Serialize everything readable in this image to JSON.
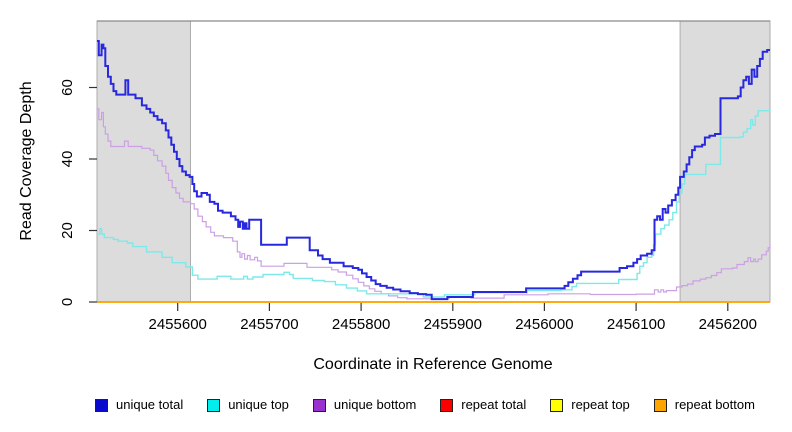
{
  "chart_data": {
    "type": "line",
    "interpolation": "step-after",
    "title": "",
    "xlabel": "Coordinate in Reference Genome",
    "ylabel": "Read Coverage Depth",
    "xlim": [
      2455512,
      2456246
    ],
    "ylim": [
      0,
      78.6
    ],
    "x_ticks": [
      2455600,
      2455700,
      2455800,
      2455900,
      2456000,
      2456100,
      2456200
    ],
    "y_ticks": [
      0,
      20,
      40,
      60
    ],
    "grid": false,
    "legend_position": "bottom",
    "plot_top_border_color": "#8A8A8A",
    "tick_color": "#333333",
    "shade_color": "#DCDCDC",
    "shade_border_color": "#ADADAD",
    "shaded_regions": [
      {
        "x0": 2455512,
        "x1": 2455614
      },
      {
        "x0": 2456148,
        "x1": 2456246
      }
    ],
    "draw_order": [
      3,
      4,
      5,
      2,
      1,
      0
    ],
    "series": [
      {
        "name": "unique total",
        "line_color": "#2828DF",
        "legend_color": "#0A0ACF",
        "line_width": 2,
        "points": [
          [
            2455512,
            73
          ],
          [
            2455514,
            69
          ],
          [
            2455517,
            72
          ],
          [
            2455519,
            71
          ],
          [
            2455521,
            66
          ],
          [
            2455524,
            63
          ],
          [
            2455527,
            61
          ],
          [
            2455530,
            59
          ],
          [
            2455533,
            58
          ],
          [
            2455543,
            62
          ],
          [
            2455546,
            58
          ],
          [
            2455554,
            57
          ],
          [
            2455561,
            55
          ],
          [
            2455566,
            54
          ],
          [
            2455570,
            53
          ],
          [
            2455574,
            52
          ],
          [
            2455578,
            51
          ],
          [
            2455583,
            50
          ],
          [
            2455587,
            48
          ],
          [
            2455590,
            46
          ],
          [
            2455593,
            44
          ],
          [
            2455596,
            42
          ],
          [
            2455599,
            40
          ],
          [
            2455602,
            38
          ],
          [
            2455605,
            36.5
          ],
          [
            2455609,
            35.5
          ],
          [
            2455613,
            35
          ],
          [
            2455616,
            33
          ],
          [
            2455618,
            31
          ],
          [
            2455621,
            29.5
          ],
          [
            2455626,
            30.5
          ],
          [
            2455632,
            30
          ],
          [
            2455635,
            28
          ],
          [
            2455640,
            27.5
          ],
          [
            2455644,
            25.5
          ],
          [
            2455649,
            25
          ],
          [
            2455658,
            24
          ],
          [
            2455663,
            23
          ],
          [
            2455666,
            21
          ],
          [
            2455668,
            22.5
          ],
          [
            2455671,
            20.5
          ],
          [
            2455673,
            22
          ],
          [
            2455675,
            20.5
          ],
          [
            2455678,
            23
          ],
          [
            2455688,
            23
          ],
          [
            2455691,
            16
          ],
          [
            2455714,
            16
          ],
          [
            2455719,
            18
          ],
          [
            2455740,
            18
          ],
          [
            2455744,
            14.5
          ],
          [
            2455753,
            13
          ],
          [
            2455758,
            12
          ],
          [
            2455766,
            11
          ],
          [
            2455781,
            10
          ],
          [
            2455791,
            9.5
          ],
          [
            2455797,
            9
          ],
          [
            2455801,
            8
          ],
          [
            2455806,
            7
          ],
          [
            2455811,
            6
          ],
          [
            2455816,
            5
          ],
          [
            2455821,
            4.5
          ],
          [
            2455828,
            4
          ],
          [
            2455835,
            3.5
          ],
          [
            2455843,
            3
          ],
          [
            2455853,
            2.5
          ],
          [
            2455862,
            2.2
          ],
          [
            2455871,
            2
          ],
          [
            2455877,
            0.8
          ],
          [
            2455894,
            1.4
          ],
          [
            2455922,
            2.8
          ],
          [
            2455980,
            3.8
          ],
          [
            2456022,
            4.5
          ],
          [
            2456026,
            5.5
          ],
          [
            2456031,
            6.5
          ],
          [
            2456036,
            7.5
          ],
          [
            2456040,
            8.5
          ],
          [
            2456082,
            9.5
          ],
          [
            2456090,
            10
          ],
          [
            2456097,
            11
          ],
          [
            2456101,
            12
          ],
          [
            2456105,
            13
          ],
          [
            2456112,
            13.5
          ],
          [
            2456117,
            14.5
          ],
          [
            2456120,
            23
          ],
          [
            2456123,
            24
          ],
          [
            2456126,
            23
          ],
          [
            2456129,
            26
          ],
          [
            2456132,
            25
          ],
          [
            2456135,
            27
          ],
          [
            2456139,
            28.5
          ],
          [
            2456143,
            30
          ],
          [
            2456146,
            32
          ],
          [
            2456148,
            35
          ],
          [
            2456152,
            36.5
          ],
          [
            2456155,
            38.5
          ],
          [
            2456158,
            40.5
          ],
          [
            2456161,
            42.5
          ],
          [
            2456164,
            43.5
          ],
          [
            2456172,
            44
          ],
          [
            2456175,
            46
          ],
          [
            2456180,
            46.5
          ],
          [
            2456186,
            47
          ],
          [
            2456192,
            57
          ],
          [
            2456211,
            57.5
          ],
          [
            2456214,
            60
          ],
          [
            2456217,
            62
          ],
          [
            2456220,
            63
          ],
          [
            2456223,
            61
          ],
          [
            2456226,
            65
          ],
          [
            2456229,
            63
          ],
          [
            2456232,
            66
          ],
          [
            2456235,
            68
          ],
          [
            2456238,
            70
          ],
          [
            2456243,
            70.5
          ],
          [
            2456246,
            70.5
          ]
        ]
      },
      {
        "name": "unique top",
        "line_color": "#7DE9E9",
        "legend_color": "#00EEEE",
        "line_width": 1.4,
        "points": [
          [
            2455512,
            19
          ],
          [
            2455515,
            20.5
          ],
          [
            2455517,
            19
          ],
          [
            2455520,
            18
          ],
          [
            2455530,
            17.5
          ],
          [
            2455535,
            17
          ],
          [
            2455545,
            16.5
          ],
          [
            2455551,
            15.5
          ],
          [
            2455566,
            14
          ],
          [
            2455583,
            12.5
          ],
          [
            2455594,
            11
          ],
          [
            2455609,
            9.8
          ],
          [
            2455616,
            7.5
          ],
          [
            2455622,
            6.4
          ],
          [
            2455643,
            7.2
          ],
          [
            2455658,
            6.4
          ],
          [
            2455672,
            7.2
          ],
          [
            2455676,
            6.4
          ],
          [
            2455682,
            7
          ],
          [
            2455693,
            7.7
          ],
          [
            2455716,
            8.3
          ],
          [
            2455722,
            7.7
          ],
          [
            2455726,
            6.6
          ],
          [
            2455747,
            6
          ],
          [
            2455760,
            5.7
          ],
          [
            2455772,
            4.8
          ],
          [
            2455784,
            3.9
          ],
          [
            2455796,
            3.1
          ],
          [
            2455806,
            2.3
          ],
          [
            2455868,
            1.4
          ],
          [
            2455891,
            2
          ],
          [
            2455924,
            2.6
          ],
          [
            2455981,
            3.2
          ],
          [
            2456018,
            3.4
          ],
          [
            2456030,
            4.3
          ],
          [
            2456035,
            5.2
          ],
          [
            2456081,
            6.3
          ],
          [
            2456101,
            8
          ],
          [
            2456104,
            10
          ],
          [
            2456108,
            11
          ],
          [
            2456112,
            12.5
          ],
          [
            2456117,
            13
          ],
          [
            2456119,
            16
          ],
          [
            2456121,
            19
          ],
          [
            2456127,
            20.5
          ],
          [
            2456131,
            21.5
          ],
          [
            2456136,
            23
          ],
          [
            2456140,
            25
          ],
          [
            2456144,
            28
          ],
          [
            2456147,
            30.5
          ],
          [
            2456150,
            33
          ],
          [
            2456153,
            35.7
          ],
          [
            2456176,
            38.5
          ],
          [
            2456192,
            46
          ],
          [
            2456214,
            46.2
          ],
          [
            2456217,
            47.5
          ],
          [
            2456221,
            48.5
          ],
          [
            2456225,
            51
          ],
          [
            2456227,
            49.5
          ],
          [
            2456230,
            52
          ],
          [
            2456233,
            53.5
          ],
          [
            2456246,
            53.8
          ]
        ]
      },
      {
        "name": "unique bottom",
        "line_color": "#CBA0E4",
        "legend_color": "#9932CC",
        "line_width": 1.2,
        "points": [
          [
            2455512,
            54
          ],
          [
            2455514,
            51
          ],
          [
            2455517,
            53
          ],
          [
            2455519,
            49
          ],
          [
            2455521,
            47
          ],
          [
            2455524,
            45
          ],
          [
            2455527,
            43.5
          ],
          [
            2455542,
            45
          ],
          [
            2455546,
            43.5
          ],
          [
            2455561,
            43
          ],
          [
            2455570,
            42.5
          ],
          [
            2455574,
            41
          ],
          [
            2455578,
            39.5
          ],
          [
            2455583,
            38
          ],
          [
            2455587,
            36
          ],
          [
            2455590,
            34
          ],
          [
            2455594,
            32
          ],
          [
            2455598,
            30.5
          ],
          [
            2455602,
            29
          ],
          [
            2455606,
            28
          ],
          [
            2455614,
            27.5
          ],
          [
            2455618,
            26
          ],
          [
            2455622,
            24
          ],
          [
            2455627,
            22.5
          ],
          [
            2455631,
            21
          ],
          [
            2455636,
            19.5
          ],
          [
            2455640,
            18.5
          ],
          [
            2455650,
            18
          ],
          [
            2455660,
            17
          ],
          [
            2455665,
            14
          ],
          [
            2455668,
            12.5
          ],
          [
            2455670,
            13.5
          ],
          [
            2455673,
            12
          ],
          [
            2455676,
            13
          ],
          [
            2455679,
            11.8
          ],
          [
            2455684,
            12.5
          ],
          [
            2455687,
            11.5
          ],
          [
            2455691,
            10
          ],
          [
            2455716,
            10.8
          ],
          [
            2455741,
            9.7
          ],
          [
            2455768,
            9
          ],
          [
            2455775,
            8.4
          ],
          [
            2455784,
            7.5
          ],
          [
            2455791,
            6.5
          ],
          [
            2455797,
            5.5
          ],
          [
            2455803,
            4.5
          ],
          [
            2455809,
            3.7
          ],
          [
            2455815,
            3
          ],
          [
            2455822,
            2.3
          ],
          [
            2455830,
            1.7
          ],
          [
            2455840,
            1.2
          ],
          [
            2455850,
            0.9
          ],
          [
            2455896,
            1.3
          ],
          [
            2455920,
            1.1
          ],
          [
            2455956,
            2
          ],
          [
            2456004,
            2.3
          ],
          [
            2456050,
            2.1
          ],
          [
            2456100,
            2.2
          ],
          [
            2456120,
            3.4
          ],
          [
            2456124,
            2.8
          ],
          [
            2456127,
            3.4
          ],
          [
            2456130,
            2.8
          ],
          [
            2456133,
            3.2
          ],
          [
            2456144,
            4.2
          ],
          [
            2456150,
            4.6
          ],
          [
            2456156,
            5
          ],
          [
            2456162,
            5.9
          ],
          [
            2456170,
            6.4
          ],
          [
            2456176,
            6.8
          ],
          [
            2456182,
            7.4
          ],
          [
            2456188,
            8.2
          ],
          [
            2456193,
            9.3
          ],
          [
            2456205,
            9.5
          ],
          [
            2456210,
            10.5
          ],
          [
            2456218,
            11.3
          ],
          [
            2456222,
            12.4
          ],
          [
            2456225,
            11.3
          ],
          [
            2456228,
            12
          ],
          [
            2456230,
            11.3
          ],
          [
            2456233,
            12
          ],
          [
            2456237,
            13.2
          ],
          [
            2456242,
            14.2
          ],
          [
            2456244,
            15.2
          ],
          [
            2456246,
            16.2
          ]
        ]
      },
      {
        "name": "repeat total",
        "line_color": "#FF0000",
        "legend_color": "#FF0000",
        "line_width": 1.2,
        "points": [
          [
            2455512,
            0
          ],
          [
            2456246,
            0
          ]
        ]
      },
      {
        "name": "repeat top",
        "line_color": "#FFFF00",
        "legend_color": "#FFFF00",
        "line_width": 1.2,
        "points": [
          [
            2455512,
            0
          ],
          [
            2456246,
            0
          ]
        ]
      },
      {
        "name": "repeat bottom",
        "line_color": "#FFA500",
        "legend_color": "#FFA500",
        "line_width": 1.8,
        "points": [
          [
            2455512,
            0
          ],
          [
            2456246,
            0
          ]
        ]
      }
    ]
  }
}
